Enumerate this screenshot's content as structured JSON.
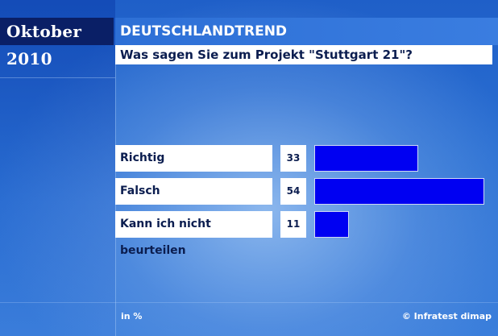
{
  "header": {
    "date": "Oktober 2010",
    "brand": "DEUTSCHLANDTREND",
    "question": "Was sagen Sie zum Projekt \"Stuttgart 21\"?"
  },
  "footer": {
    "unit": "in %",
    "source": "© Infratest dimap"
  },
  "colors": {
    "bar": "#0000f2",
    "date_box": "#0a1f66",
    "brand_box": "#3a7de0"
  },
  "chart_data": {
    "type": "bar",
    "orientation": "horizontal",
    "title": "Was sagen Sie zum Projekt \"Stuttgart 21\"?",
    "categories": [
      "Richtig",
      "Falsch",
      "Kann ich nicht beurteilen"
    ],
    "values": [
      33,
      54,
      11
    ],
    "value_labels": [
      "33",
      "54",
      "11"
    ],
    "unit": "in %",
    "xlim": [
      0,
      54
    ]
  }
}
